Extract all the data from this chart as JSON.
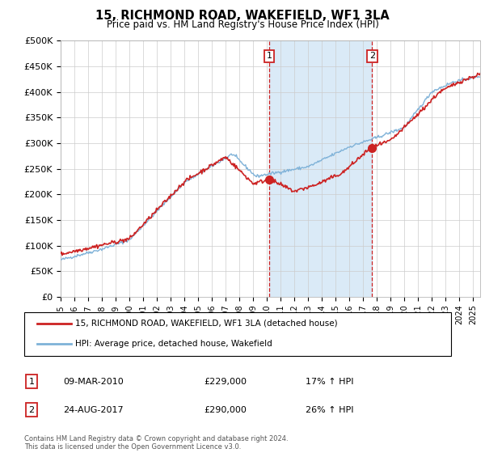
{
  "title": "15, RICHMOND ROAD, WAKEFIELD, WF1 3LA",
  "subtitle": "Price paid vs. HM Land Registry's House Price Index (HPI)",
  "ylabel_ticks": [
    "£0",
    "£50K",
    "£100K",
    "£150K",
    "£200K",
    "£250K",
    "£300K",
    "£350K",
    "£400K",
    "£450K",
    "£500K"
  ],
  "ytick_vals": [
    0,
    50000,
    100000,
    150000,
    200000,
    250000,
    300000,
    350000,
    400000,
    450000,
    500000
  ],
  "ylim": [
    0,
    500000
  ],
  "xlim_start": 1995.0,
  "xlim_end": 2025.5,
  "hpi_color": "#7fb2d8",
  "price_color": "#cc2222",
  "sale1_x": 2010.17,
  "sale1_y": 229000,
  "sale2_x": 2017.64,
  "sale2_y": 290000,
  "vline1_x": 2010.17,
  "vline2_x": 2017.64,
  "legend_line1": "15, RICHMOND ROAD, WAKEFIELD, WF1 3LA (detached house)",
  "legend_line2": "HPI: Average price, detached house, Wakefield",
  "annotation1_label": "1",
  "annotation1_date": "09-MAR-2010",
  "annotation1_price": "£229,000",
  "annotation1_hpi": "17% ↑ HPI",
  "annotation2_label": "2",
  "annotation2_date": "24-AUG-2017",
  "annotation2_price": "£290,000",
  "annotation2_hpi": "26% ↑ HPI",
  "footnote": "Contains HM Land Registry data © Crown copyright and database right 2024.\nThis data is licensed under the Open Government Licence v3.0.",
  "bg_shaded_color": "#daeaf7",
  "bg_white": "#ffffff"
}
